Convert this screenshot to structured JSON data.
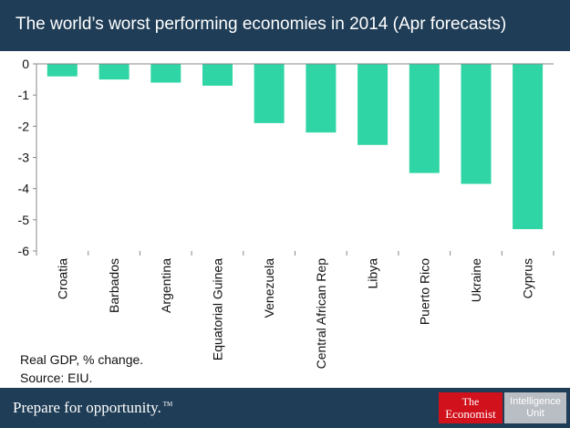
{
  "header": {
    "title": "The world’s worst performing economies in 2014 (Apr forecasts)"
  },
  "chart_data": {
    "type": "bar",
    "title": "The world’s worst performing economies in 2014 (Apr forecasts)",
    "categories": [
      "Croatia",
      "Barbados",
      "Argentina",
      "Equatorial Guinea",
      "Venezuela",
      "Central African Rep",
      "Libya",
      "Puerto Rico",
      "Ukraine",
      "Cyprus"
    ],
    "values": [
      -0.4,
      -0.5,
      -0.6,
      -0.7,
      -1.9,
      -2.2,
      -2.6,
      -3.5,
      -3.85,
      -5.3
    ],
    "ylim": [
      -6,
      0
    ],
    "yticks": [
      0,
      -1,
      -2,
      -3,
      -4,
      -5,
      -6
    ],
    "xlabel": "",
    "ylabel": "",
    "grid": false,
    "bar_color": "#2fd5a4"
  },
  "notes": {
    "line1": "Real GDP, % change.",
    "line2": "Source: EIU."
  },
  "footer": {
    "tagline": "Prepare for opportunity.",
    "tm": "TM",
    "logo_economist_line1": "The",
    "logo_economist_line2": "Economist",
    "logo_iu_line1": "Intelligence",
    "logo_iu_line2": "Unit"
  },
  "colors": {
    "header_bg": "#1f3d56",
    "bar": "#2fd5a4",
    "logo_red": "#d1111c",
    "logo_grey": "#b9bec4"
  }
}
